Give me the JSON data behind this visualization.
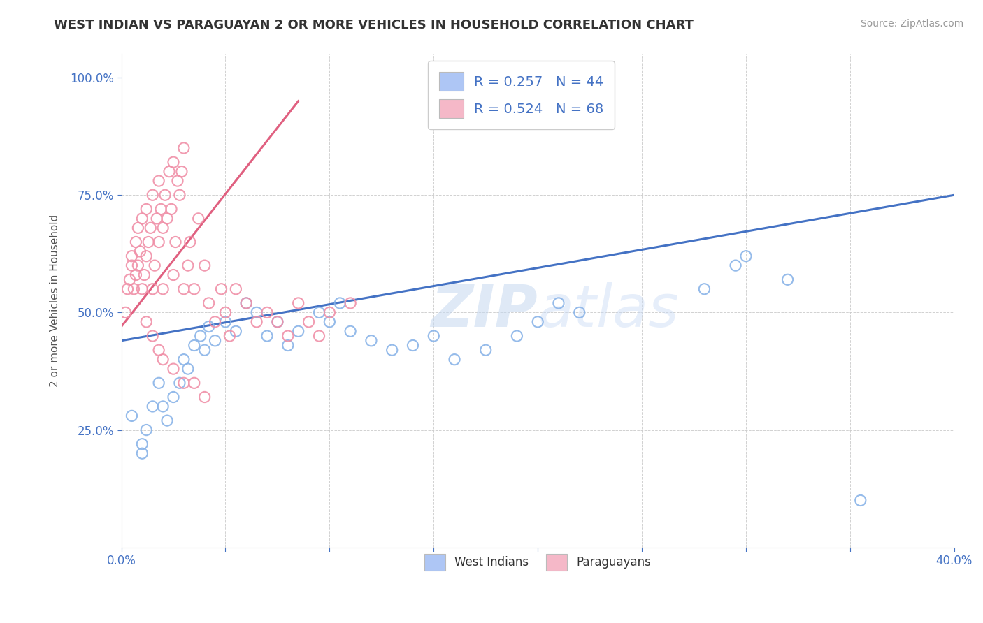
{
  "title": "WEST INDIAN VS PARAGUAYAN 2 OR MORE VEHICLES IN HOUSEHOLD CORRELATION CHART",
  "source": "Source: ZipAtlas.com",
  "ylabel": "2 or more Vehicles in Household",
  "xmin": 0.0,
  "xmax": 0.4,
  "ymin": 0.0,
  "ymax": 1.05,
  "legend1_label": "R = 0.257   N = 44",
  "legend2_label": "R = 0.524   N = 68",
  "legend_color1": "#aec6f5",
  "legend_color2": "#f5b8c8",
  "scatter_color1": "#8ab4e8",
  "scatter_color2": "#f090a8",
  "line_color1": "#4472c4",
  "line_color2": "#e06080",
  "watermark_zip": "ZIP",
  "watermark_atlas": "atlas",
  "west_indians_x": [
    0.005,
    0.01,
    0.01,
    0.012,
    0.015,
    0.018,
    0.02,
    0.022,
    0.025,
    0.028,
    0.03,
    0.032,
    0.035,
    0.038,
    0.04,
    0.042,
    0.045,
    0.05,
    0.055,
    0.06,
    0.065,
    0.07,
    0.075,
    0.08,
    0.085,
    0.095,
    0.1,
    0.105,
    0.11,
    0.12,
    0.13,
    0.14,
    0.15,
    0.16,
    0.175,
    0.19,
    0.2,
    0.21,
    0.22,
    0.28,
    0.295,
    0.3,
    0.32,
    0.355
  ],
  "west_indians_y": [
    0.28,
    0.22,
    0.2,
    0.25,
    0.3,
    0.35,
    0.3,
    0.27,
    0.32,
    0.35,
    0.4,
    0.38,
    0.43,
    0.45,
    0.42,
    0.47,
    0.44,
    0.48,
    0.46,
    0.52,
    0.5,
    0.45,
    0.48,
    0.43,
    0.46,
    0.5,
    0.48,
    0.52,
    0.46,
    0.44,
    0.42,
    0.43,
    0.45,
    0.4,
    0.42,
    0.45,
    0.48,
    0.52,
    0.5,
    0.55,
    0.6,
    0.62,
    0.57,
    0.1
  ],
  "paraguayans_x": [
    0.002,
    0.003,
    0.004,
    0.005,
    0.005,
    0.006,
    0.007,
    0.007,
    0.008,
    0.008,
    0.009,
    0.01,
    0.01,
    0.011,
    0.012,
    0.012,
    0.013,
    0.014,
    0.015,
    0.015,
    0.016,
    0.017,
    0.018,
    0.018,
    0.019,
    0.02,
    0.02,
    0.021,
    0.022,
    0.023,
    0.024,
    0.025,
    0.025,
    0.026,
    0.027,
    0.028,
    0.029,
    0.03,
    0.03,
    0.032,
    0.033,
    0.035,
    0.037,
    0.04,
    0.042,
    0.045,
    0.048,
    0.05,
    0.052,
    0.055,
    0.06,
    0.065,
    0.07,
    0.075,
    0.08,
    0.085,
    0.09,
    0.095,
    0.1,
    0.11,
    0.012,
    0.015,
    0.018,
    0.02,
    0.025,
    0.03,
    0.035,
    0.04
  ],
  "paraguayans_y": [
    0.5,
    0.55,
    0.57,
    0.6,
    0.62,
    0.55,
    0.58,
    0.65,
    0.6,
    0.68,
    0.63,
    0.55,
    0.7,
    0.58,
    0.62,
    0.72,
    0.65,
    0.68,
    0.55,
    0.75,
    0.6,
    0.7,
    0.65,
    0.78,
    0.72,
    0.55,
    0.68,
    0.75,
    0.7,
    0.8,
    0.72,
    0.58,
    0.82,
    0.65,
    0.78,
    0.75,
    0.8,
    0.55,
    0.85,
    0.6,
    0.65,
    0.55,
    0.7,
    0.6,
    0.52,
    0.48,
    0.55,
    0.5,
    0.45,
    0.55,
    0.52,
    0.48,
    0.5,
    0.48,
    0.45,
    0.52,
    0.48,
    0.45,
    0.5,
    0.52,
    0.48,
    0.45,
    0.42,
    0.4,
    0.38,
    0.35,
    0.35,
    0.32
  ],
  "blue_line_x0": 0.0,
  "blue_line_x1": 0.4,
  "blue_line_y0": 0.44,
  "blue_line_y1": 0.75,
  "pink_line_x0": 0.0,
  "pink_line_x1": 0.085,
  "pink_line_y0": 0.47,
  "pink_line_y1": 0.95
}
